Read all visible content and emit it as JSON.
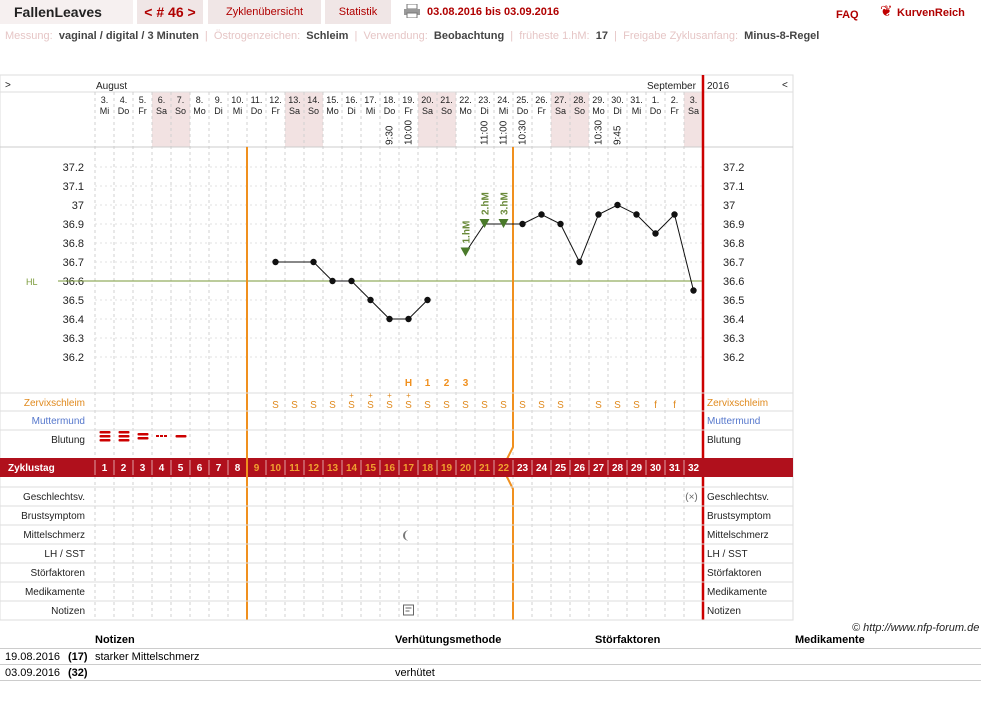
{
  "header": {
    "user": "FallenLeaves",
    "cycle_nav": "< # 46 >",
    "tab_overview": "Zyklenübersicht",
    "tab_stats": "Statistik",
    "date_range": "03.08.2016 bis 03.09.2016",
    "faq": "FAQ",
    "brand": "KurvenReich"
  },
  "subheader": {
    "messung_label": "Messung:",
    "messung_value": "vaginal / digital / 3 Minuten",
    "oestrogen_label": "Östrogenzeichen:",
    "oestrogen_value": "Schleim",
    "verwendung_label": "Verwendung:",
    "verwendung_value": "Beobachtung",
    "fhm_label": "früheste 1.hM:",
    "fhm_value": "17",
    "freigabe_label": "Freigabe Zyklusanfang:",
    "freigabe_value": "Minus-8-Regel"
  },
  "chart_data": {
    "type": "line",
    "title": "",
    "month_labels": [
      "August",
      "September",
      "2016"
    ],
    "days": [
      {
        "d": "3.",
        "w": "Mi"
      },
      {
        "d": "4.",
        "w": "Do"
      },
      {
        "d": "5.",
        "w": "Fr"
      },
      {
        "d": "6.",
        "w": "Sa"
      },
      {
        "d": "7.",
        "w": "So"
      },
      {
        "d": "8.",
        "w": "Mo"
      },
      {
        "d": "9.",
        "w": "Di"
      },
      {
        "d": "10.",
        "w": "Mi"
      },
      {
        "d": "11.",
        "w": "Do"
      },
      {
        "d": "12.",
        "w": "Fr"
      },
      {
        "d": "13.",
        "w": "Sa"
      },
      {
        "d": "14.",
        "w": "So"
      },
      {
        "d": "15.",
        "w": "Mo"
      },
      {
        "d": "16.",
        "w": "Di"
      },
      {
        "d": "17.",
        "w": "Mi"
      },
      {
        "d": "18.",
        "w": "Do"
      },
      {
        "d": "19.",
        "w": "Fr"
      },
      {
        "d": "20.",
        "w": "Sa"
      },
      {
        "d": "21.",
        "w": "So"
      },
      {
        "d": "22.",
        "w": "Mo"
      },
      {
        "d": "23.",
        "w": "Di"
      },
      {
        "d": "24.",
        "w": "Mi"
      },
      {
        "d": "25.",
        "w": "Do"
      },
      {
        "d": "26.",
        "w": "Fr"
      },
      {
        "d": "27.",
        "w": "Sa"
      },
      {
        "d": "28.",
        "w": "So"
      },
      {
        "d": "29.",
        "w": "Mo"
      },
      {
        "d": "30.",
        "w": "Di"
      },
      {
        "d": "31.",
        "w": "Mi"
      },
      {
        "d": "1.",
        "w": "Do"
      },
      {
        "d": "2.",
        "w": "Fr"
      },
      {
        "d": "3.",
        "w": "Sa"
      }
    ],
    "weekend_days": [
      4,
      5,
      11,
      12,
      18,
      19,
      25,
      26,
      32
    ],
    "times": {
      "16": "9:30",
      "17": "10:00",
      "21": "11:00",
      "22": "11:00",
      "23": "10:30",
      "27": "10:30",
      "28": "9:45"
    },
    "y_ticks": [
      "37.2",
      "37.1",
      "37",
      "36.9",
      "36.8",
      "36.7",
      "36.6",
      "36.5",
      "36.4",
      "36.3",
      "36.2"
    ],
    "ylim": [
      36.1,
      37.3
    ],
    "hl_label": "HL",
    "hl_value": 36.6,
    "temps": [
      null,
      null,
      null,
      null,
      null,
      null,
      null,
      null,
      null,
      36.7,
      null,
      36.7,
      36.6,
      36.6,
      36.5,
      36.4,
      36.4,
      36.5,
      null,
      36.75,
      36.9,
      36.9,
      36.9,
      36.95,
      36.9,
      36.7,
      36.95,
      37.0,
      36.95,
      36.85,
      36.95,
      36.55
    ],
    "line_breaks_before": [
      10,
      19
    ],
    "hm_markers": [
      {
        "day": 20,
        "label": "1.hM"
      },
      {
        "day": 21,
        "label": "2.hM"
      },
      {
        "day": 22,
        "label": "3.hM"
      }
    ],
    "fertile_start_day": 9,
    "fertile_end_day": 23,
    "peak_labels": [
      {
        "day": 17,
        "label": "H"
      },
      {
        "day": 18,
        "label": "1"
      },
      {
        "day": 19,
        "label": "2"
      },
      {
        "day": 20,
        "label": "3"
      }
    ],
    "mucus": {
      "10": "S",
      "11": "S",
      "12": "S",
      "13": "S",
      "14": "S+",
      "15": "S+",
      "16": "S+",
      "17": "S+",
      "18": "S",
      "19": "S",
      "20": "S",
      "21": "S",
      "22": "S",
      "23": "S",
      "24": "S",
      "25": "S",
      "27": "S",
      "28": "S",
      "29": "S",
      "30": "f",
      "31": "f"
    },
    "row_labels_left": [
      "Zervixschleim",
      "Muttermund",
      "Blutung",
      "Zyklustag",
      "Geschlechtsv.",
      "Brustsymptom",
      "Mittelschmerz",
      "LH / SST",
      "Störfaktoren",
      "Medikamente",
      "Notizen"
    ],
    "row_labels_right": [
      "Zervixschleim",
      "Muttermund",
      "Blutung",
      "Geschlechtsv.",
      "Brustsymptom",
      "Mittelschmerz",
      "LH / SST",
      "Störfaktoren",
      "Medikamente",
      "Notizen"
    ],
    "cycle_days": [
      "1",
      "2",
      "3",
      "4",
      "5",
      "6",
      "7",
      "8",
      "9",
      "10",
      "11",
      "12",
      "13",
      "14",
      "15",
      "16",
      "17",
      "18",
      "19",
      "20",
      "21",
      "22",
      "23",
      "24",
      "25",
      "26",
      "27",
      "28",
      "29",
      "30",
      "31",
      "32"
    ]
  },
  "copyright": "© http://www.nfp-forum.de",
  "notes_table": {
    "headers": [
      "Notizen",
      "Verhütungsmethode",
      "Störfaktoren",
      "Medikamente"
    ],
    "rows": [
      {
        "date": "19.08.2016",
        "cd": "(17)",
        "note": "starker Mittelschmerz",
        "method": ""
      },
      {
        "date": "03.09.2016",
        "cd": "(32)",
        "note": "",
        "method": "verhütet"
      }
    ]
  }
}
